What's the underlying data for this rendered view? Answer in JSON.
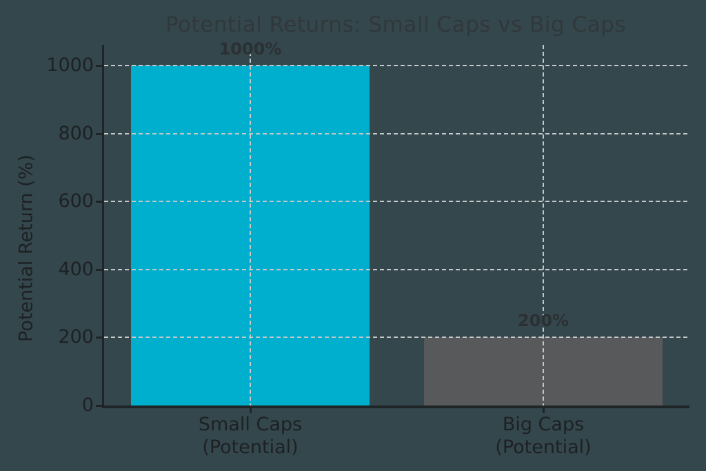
{
  "title": "Potential Returns: Small Caps vs Big Caps",
  "axes": {
    "y_label": "Potential Return (%)"
  },
  "colors": {
    "background": "#34474d",
    "title_text": "#31383b",
    "tick_text": "#1d2123",
    "value_label_text": "#2b3033",
    "gridline": "#c3c9c9",
    "axis_spine": "#1f2426",
    "small_caps_bar": "#00aecd",
    "big_caps_bar": "#58595b"
  },
  "chart_data": {
    "type": "bar",
    "title": "Potential Returns: Small Caps vs Big Caps",
    "categories": [
      "Small Caps\n(Potential)",
      "Big Caps\n(Potential)"
    ],
    "values": [
      1000,
      200
    ],
    "bar_value_labels": [
      "1000%",
      "200%"
    ],
    "bar_colors": [
      "#00aecd",
      "#58595b"
    ],
    "xlabel": "",
    "ylabel": "Potential Return (%)",
    "ylim": [
      0,
      1000
    ],
    "yticks": [
      0,
      200,
      400,
      600,
      800,
      1000
    ],
    "ytick_labels": [
      "0",
      "200",
      "400",
      "600",
      "800",
      "1000"
    ],
    "grid": {
      "horizontal": "dashed light lines at 200,400,600,800,1000 drawn over bars",
      "vertical": "dashed light lines at each bar center, full plot height"
    },
    "legend": "none"
  }
}
